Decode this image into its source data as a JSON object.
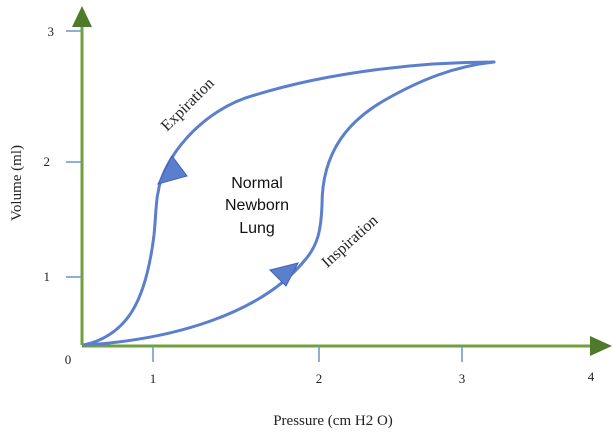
{
  "colors": {
    "axis": "#70a03c",
    "curve": "#5b7fcc",
    "arrowhead": "#5b7fcc",
    "tick": "#6a95c4",
    "text": "#222222"
  },
  "x_axis": {
    "label": "Pressure (cm H2 O)",
    "ticks": [
      "1",
      "2",
      "3",
      "4"
    ]
  },
  "y_axis": {
    "label": "Volume (ml)",
    "ticks": [
      "1",
      "2",
      "3"
    ]
  },
  "origin_label": "0",
  "annotations": {
    "expiration": "Expiration",
    "inspiration": "Inspiration",
    "center_line1": "Normal",
    "center_line2": "Newborn",
    "center_line3": "Lung"
  },
  "icons": {
    "y_axis_arrow": "arrow-up-icon",
    "x_axis_arrow": "arrow-right-icon",
    "expiration_arrow": "arrowhead-down-left-icon",
    "inspiration_arrow": "arrowhead-up-right-icon"
  }
}
